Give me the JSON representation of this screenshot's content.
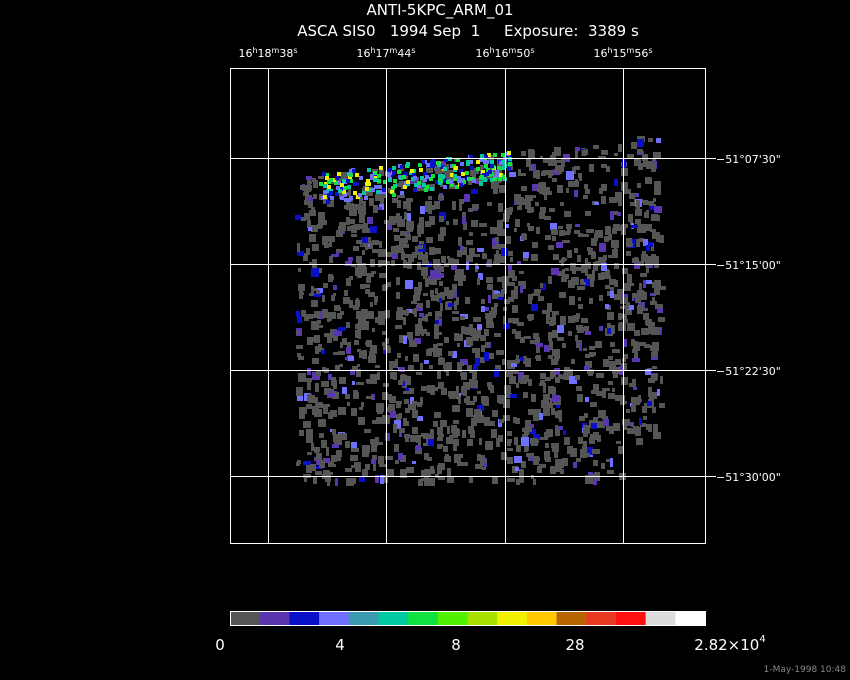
{
  "header": {
    "title": "ANTI-5KPC_ARM_01",
    "subtitle": "ASCA SIS0   1994 Sep  1     Exposure:  3389 s"
  },
  "ra_labels": [
    "16h18m38s",
    "16h17m44s",
    "16h16m50s",
    "16h15m56s"
  ],
  "dec_labels": [
    "−51°07'30\"",
    "−51°15'00\"",
    "−51°22'30\"",
    "−51°30'00\""
  ],
  "colorbar": {
    "colors": [
      "#555555",
      "#5a35b0",
      "#0a10c8",
      "#7070ff",
      "#3a9ab0",
      "#00c8a0",
      "#10e040",
      "#50f000",
      "#a8e000",
      "#f0f000",
      "#ffc800",
      "#b86400",
      "#e83a20",
      "#ff1010",
      "#dcdcdc",
      "#ffffff"
    ],
    "labels": [
      "0",
      "4",
      "8",
      "28"
    ],
    "max_label": {
      "mantissa": "2.82×10",
      "exponent": "4"
    }
  },
  "footer": {
    "timestamp": "1-May-1998 10:48"
  }
}
